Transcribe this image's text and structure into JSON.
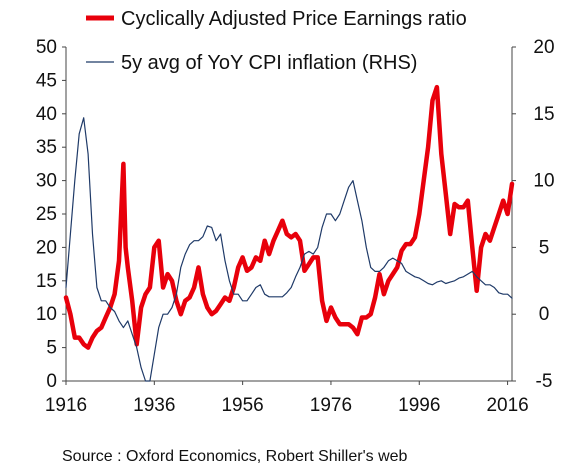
{
  "chart_data": {
    "type": "line",
    "title": "",
    "xlabel": "",
    "ylabel": "",
    "x_ticks": [
      "1916",
      "1936",
      "1956",
      "1976",
      "1996",
      "2016"
    ],
    "y_left_ticks": [
      "0",
      "5",
      "10",
      "15",
      "20",
      "25",
      "30",
      "35",
      "40",
      "45",
      "50"
    ],
    "y_right_ticks": [
      "-5",
      "0",
      "5",
      "10",
      "15",
      "20"
    ],
    "ylim_left": [
      0,
      50
    ],
    "ylim_right": [
      -5,
      20
    ],
    "xlim": [
      1916,
      2017
    ],
    "legend_position": "top",
    "grid": false,
    "source": "Source : Oxford Economics, Robert Shiller's web",
    "series": [
      {
        "name": "Cyclically Adjusted Price Earnings ratio",
        "axis": "left",
        "color": "#e8000b",
        "points": [
          [
            1916,
            12.5
          ],
          [
            1917,
            10
          ],
          [
            1918,
            6.5
          ],
          [
            1919,
            6.5
          ],
          [
            1920,
            5.5
          ],
          [
            1921,
            5
          ],
          [
            1922,
            6.5
          ],
          [
            1923,
            7.5
          ],
          [
            1924,
            8
          ],
          [
            1925,
            9.5
          ],
          [
            1926,
            11
          ],
          [
            1927,
            13
          ],
          [
            1928,
            18
          ],
          [
            1929,
            32.5
          ],
          [
            1929.5,
            20
          ],
          [
            1930,
            17
          ],
          [
            1931,
            12
          ],
          [
            1932,
            5.5
          ],
          [
            1933,
            11
          ],
          [
            1934,
            13
          ],
          [
            1935,
            14
          ],
          [
            1936,
            20
          ],
          [
            1937,
            21
          ],
          [
            1938,
            14
          ],
          [
            1939,
            16
          ],
          [
            1940,
            15
          ],
          [
            1941,
            12
          ],
          [
            1942,
            10
          ],
          [
            1943,
            12
          ],
          [
            1944,
            12.5
          ],
          [
            1945,
            14
          ],
          [
            1946,
            17
          ],
          [
            1947,
            13
          ],
          [
            1948,
            11
          ],
          [
            1949,
            10
          ],
          [
            1950,
            10.5
          ],
          [
            1951,
            11.5
          ],
          [
            1952,
            12.5
          ],
          [
            1953,
            12
          ],
          [
            1954,
            14
          ],
          [
            1955,
            17
          ],
          [
            1956,
            18.5
          ],
          [
            1957,
            16.5
          ],
          [
            1958,
            17
          ],
          [
            1959,
            18.5
          ],
          [
            1960,
            18
          ],
          [
            1961,
            21
          ],
          [
            1962,
            19
          ],
          [
            1963,
            21
          ],
          [
            1964,
            22.5
          ],
          [
            1965,
            24
          ],
          [
            1966,
            22
          ],
          [
            1967,
            21.5
          ],
          [
            1968,
            22
          ],
          [
            1969,
            21
          ],
          [
            1970,
            16.5
          ],
          [
            1971,
            17.5
          ],
          [
            1972,
            18.5
          ],
          [
            1973,
            18.5
          ],
          [
            1974,
            12
          ],
          [
            1975,
            9
          ],
          [
            1976,
            11
          ],
          [
            1977,
            9.5
          ],
          [
            1978,
            8.5
          ],
          [
            1979,
            8.5
          ],
          [
            1980,
            8.5
          ],
          [
            1981,
            8
          ],
          [
            1982,
            7
          ],
          [
            1983,
            9.5
          ],
          [
            1984,
            9.5
          ],
          [
            1985,
            10
          ],
          [
            1986,
            12.5
          ],
          [
            1987,
            16
          ],
          [
            1988,
            13
          ],
          [
            1989,
            15
          ],
          [
            1990,
            16
          ],
          [
            1991,
            17
          ],
          [
            1992,
            19.5
          ],
          [
            1993,
            20.5
          ],
          [
            1994,
            20.5
          ],
          [
            1995,
            21.5
          ],
          [
            1996,
            25
          ],
          [
            1997,
            30
          ],
          [
            1998,
            35
          ],
          [
            1999,
            42
          ],
          [
            2000,
            44
          ],
          [
            2001,
            34
          ],
          [
            2002,
            28
          ],
          [
            2003,
            22
          ],
          [
            2004,
            26.5
          ],
          [
            2005,
            26
          ],
          [
            2006,
            26
          ],
          [
            2007,
            27
          ],
          [
            2008,
            20
          ],
          [
            2009,
            13.5
          ],
          [
            2010,
            20
          ],
          [
            2011,
            22
          ],
          [
            2012,
            21
          ],
          [
            2013,
            23
          ],
          [
            2014,
            25
          ],
          [
            2015,
            27
          ],
          [
            2016,
            25
          ],
          [
            2017,
            29.5
          ]
        ]
      },
      {
        "name": "5y avg of YoY CPI inflation (RHS)",
        "axis": "right",
        "color": "#1f3a68",
        "points": [
          [
            1916,
            2
          ],
          [
            1917,
            6
          ],
          [
            1918,
            10
          ],
          [
            1919,
            13.5
          ],
          [
            1920,
            14.7
          ],
          [
            1921,
            12
          ],
          [
            1922,
            6
          ],
          [
            1923,
            2
          ],
          [
            1924,
            1
          ],
          [
            1925,
            1
          ],
          [
            1926,
            0.5
          ],
          [
            1927,
            0.2
          ],
          [
            1928,
            -0.5
          ],
          [
            1929,
            -1
          ],
          [
            1930,
            -0.5
          ],
          [
            1931,
            -1.5
          ],
          [
            1932,
            -2.5
          ],
          [
            1933,
            -4
          ],
          [
            1934,
            -5
          ],
          [
            1935,
            -5
          ],
          [
            1936,
            -3
          ],
          [
            1937,
            -1
          ],
          [
            1938,
            0
          ],
          [
            1939,
            0
          ],
          [
            1940,
            0.5
          ],
          [
            1941,
            1.5
          ],
          [
            1942,
            3.5
          ],
          [
            1943,
            4.5
          ],
          [
            1944,
            5.2
          ],
          [
            1945,
            5.5
          ],
          [
            1946,
            5.5
          ],
          [
            1947,
            5.8
          ],
          [
            1948,
            6.6
          ],
          [
            1949,
            6.5
          ],
          [
            1950,
            5.5
          ],
          [
            1951,
            6
          ],
          [
            1952,
            4
          ],
          [
            1953,
            2.5
          ],
          [
            1954,
            1.5
          ],
          [
            1955,
            1.5
          ],
          [
            1956,
            1
          ],
          [
            1957,
            1
          ],
          [
            1958,
            1.5
          ],
          [
            1959,
            2
          ],
          [
            1960,
            2.2
          ],
          [
            1961,
            1.5
          ],
          [
            1962,
            1.3
          ],
          [
            1963,
            1.3
          ],
          [
            1964,
            1.3
          ],
          [
            1965,
            1.3
          ],
          [
            1966,
            1.6
          ],
          [
            1967,
            2
          ],
          [
            1968,
            2.8
          ],
          [
            1969,
            3.5
          ],
          [
            1970,
            4.5
          ],
          [
            1971,
            4.7
          ],
          [
            1972,
            4.5
          ],
          [
            1973,
            5
          ],
          [
            1974,
            6.5
          ],
          [
            1975,
            7.5
          ],
          [
            1976,
            7.5
          ],
          [
            1977,
            7
          ],
          [
            1978,
            7.5
          ],
          [
            1979,
            8.5
          ],
          [
            1980,
            9.5
          ],
          [
            1981,
            10
          ],
          [
            1982,
            8.5
          ],
          [
            1983,
            7
          ],
          [
            1984,
            5
          ],
          [
            1985,
            3.5
          ],
          [
            1986,
            3.2
          ],
          [
            1987,
            3.2
          ],
          [
            1988,
            3.5
          ],
          [
            1989,
            4
          ],
          [
            1990,
            4.2
          ],
          [
            1991,
            4
          ],
          [
            1992,
            3.8
          ],
          [
            1993,
            3.2
          ],
          [
            1994,
            3
          ],
          [
            1995,
            2.8
          ],
          [
            1996,
            2.7
          ],
          [
            1997,
            2.5
          ],
          [
            1998,
            2.3
          ],
          [
            1999,
            2.2
          ],
          [
            2000,
            2.4
          ],
          [
            2001,
            2.5
          ],
          [
            2002,
            2.3
          ],
          [
            2003,
            2.4
          ],
          [
            2004,
            2.5
          ],
          [
            2005,
            2.7
          ],
          [
            2006,
            2.8
          ],
          [
            2007,
            3
          ],
          [
            2008,
            3.2
          ],
          [
            2009,
            2.8
          ],
          [
            2010,
            2.5
          ],
          [
            2011,
            2.2
          ],
          [
            2012,
            2.2
          ],
          [
            2013,
            2
          ],
          [
            2014,
            1.6
          ],
          [
            2015,
            1.5
          ],
          [
            2016,
            1.5
          ],
          [
            2017,
            1.2
          ]
        ]
      }
    ]
  }
}
